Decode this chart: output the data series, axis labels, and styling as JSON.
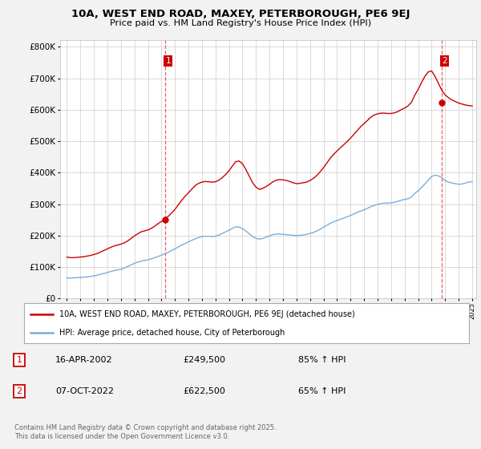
{
  "title": "10A, WEST END ROAD, MAXEY, PETERBOROUGH, PE6 9EJ",
  "subtitle": "Price paid vs. HM Land Registry's House Price Index (HPI)",
  "red_label": "10A, WEST END ROAD, MAXEY, PETERBOROUGH, PE6 9EJ (detached house)",
  "blue_label": "HPI: Average price, detached house, City of Peterborough",
  "marker1_date": "16-APR-2002",
  "marker1_price": 249500,
  "marker1_pct": "85% ↑ HPI",
  "marker2_date": "07-OCT-2022",
  "marker2_price": 622500,
  "marker2_pct": "65% ↑ HPI",
  "footnote": "Contains HM Land Registry data © Crown copyright and database right 2025.\nThis data is licensed under the Open Government Licence v3.0.",
  "background_color": "#f2f2f2",
  "plot_bg_color": "#ffffff",
  "red_color": "#cc0000",
  "blue_color": "#7aaddb",
  "marker_vline_color": "#dd4444",
  "grid_color": "#cccccc",
  "ylim": [
    0,
    820000
  ],
  "yticks": [
    0,
    100000,
    200000,
    300000,
    400000,
    500000,
    600000,
    700000,
    800000
  ],
  "x_start_year": 1995,
  "x_end_year": 2025,
  "marker1_x": 2002.29,
  "marker2_x": 2022.77,
  "hpi_data": {
    "years": [
      1995.0,
      1995.25,
      1995.5,
      1995.75,
      1996.0,
      1996.25,
      1996.5,
      1996.75,
      1997.0,
      1997.25,
      1997.5,
      1997.75,
      1998.0,
      1998.25,
      1998.5,
      1998.75,
      1999.0,
      1999.25,
      1999.5,
      1999.75,
      2000.0,
      2000.25,
      2000.5,
      2000.75,
      2001.0,
      2001.25,
      2001.5,
      2001.75,
      2002.0,
      2002.25,
      2002.5,
      2002.75,
      2003.0,
      2003.25,
      2003.5,
      2003.75,
      2004.0,
      2004.25,
      2004.5,
      2004.75,
      2005.0,
      2005.25,
      2005.5,
      2005.75,
      2006.0,
      2006.25,
      2006.5,
      2006.75,
      2007.0,
      2007.25,
      2007.5,
      2007.75,
      2008.0,
      2008.25,
      2008.5,
      2008.75,
      2009.0,
      2009.25,
      2009.5,
      2009.75,
      2010.0,
      2010.25,
      2010.5,
      2010.75,
      2011.0,
      2011.25,
      2011.5,
      2011.75,
      2012.0,
      2012.25,
      2012.5,
      2012.75,
      2013.0,
      2013.25,
      2013.5,
      2013.75,
      2014.0,
      2014.25,
      2014.5,
      2014.75,
      2015.0,
      2015.25,
      2015.5,
      2015.75,
      2016.0,
      2016.25,
      2016.5,
      2016.75,
      2017.0,
      2017.25,
      2017.5,
      2017.75,
      2018.0,
      2018.25,
      2018.5,
      2018.75,
      2019.0,
      2019.25,
      2019.5,
      2019.75,
      2020.0,
      2020.25,
      2020.5,
      2020.75,
      2021.0,
      2021.25,
      2021.5,
      2021.75,
      2022.0,
      2022.25,
      2022.5,
      2022.75,
      2023.0,
      2023.25,
      2023.5,
      2023.75,
      2024.0,
      2024.25,
      2024.5,
      2024.75,
      2025.0
    ],
    "blue_values": [
      65000,
      65500,
      66000,
      66500,
      67000,
      68000,
      69000,
      70500,
      72000,
      74500,
      77000,
      80000,
      83000,
      86000,
      89000,
      91000,
      93000,
      97000,
      102000,
      107000,
      112000,
      116000,
      119000,
      121000,
      123000,
      126000,
      130000,
      134000,
      138000,
      142000,
      147000,
      153000,
      158000,
      164000,
      170000,
      175000,
      180000,
      185000,
      190000,
      194000,
      197000,
      198000,
      198000,
      197000,
      198000,
      202000,
      207000,
      212000,
      217000,
      223000,
      228000,
      227000,
      222000,
      215000,
      206000,
      197000,
      191000,
      189000,
      191000,
      195000,
      199000,
      203000,
      205000,
      205000,
      204000,
      203000,
      202000,
      201000,
      200000,
      201000,
      202000,
      204000,
      207000,
      210000,
      215000,
      220000,
      227000,
      233000,
      239000,
      244000,
      248000,
      252000,
      256000,
      260000,
      264000,
      269000,
      274000,
      278000,
      282000,
      287000,
      292000,
      296000,
      299000,
      302000,
      303000,
      303000,
      304000,
      306000,
      309000,
      312000,
      315000,
      317000,
      322000,
      334000,
      342000,
      353000,
      364000,
      376000,
      388000,
      392000,
      390000,
      384000,
      375000,
      370000,
      367000,
      365000,
      363000,
      364000,
      367000,
      370000,
      371000
    ],
    "red_values": [
      132000,
      130000,
      130000,
      131000,
      132000,
      133000,
      135000,
      137000,
      140000,
      143000,
      148000,
      153000,
      158000,
      163000,
      167000,
      170000,
      173000,
      177000,
      183000,
      191000,
      199000,
      206000,
      212000,
      215000,
      218000,
      223000,
      230000,
      238000,
      245000,
      252000,
      261000,
      272000,
      283000,
      298000,
      312000,
      325000,
      336000,
      348000,
      359000,
      366000,
      370000,
      372000,
      371000,
      370000,
      371000,
      376000,
      384000,
      394000,
      406000,
      421000,
      435000,
      437000,
      428000,
      410000,
      389000,
      368000,
      354000,
      347000,
      350000,
      356000,
      363000,
      371000,
      376000,
      378000,
      377000,
      375000,
      372000,
      368000,
      365000,
      366000,
      368000,
      370000,
      375000,
      382000,
      391000,
      403000,
      416000,
      431000,
      446000,
      458000,
      469000,
      479000,
      489000,
      499000,
      510000,
      522000,
      534000,
      546000,
      556000,
      566000,
      576000,
      583000,
      587000,
      589000,
      589000,
      588000,
      588000,
      590000,
      594000,
      600000,
      605000,
      612000,
      623000,
      646000,
      664000,
      686000,
      706000,
      720000,
      723000,
      706000,
      684000,
      662000,
      647000,
      638000,
      631000,
      626000,
      621000,
      618000,
      615000,
      613000,
      612000
    ]
  }
}
